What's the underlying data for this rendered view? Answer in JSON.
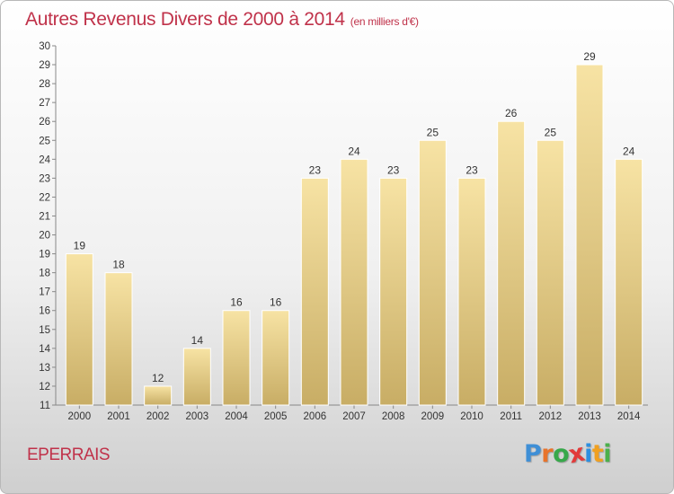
{
  "header": {
    "title": "Autres Revenus Divers de 2000 à 2014",
    "unit": "(en milliers d'€)"
  },
  "footer": {
    "commune": "EPERRAIS",
    "brand_letters": [
      "P",
      "r",
      "o",
      "x",
      "i",
      "t",
      "i"
    ],
    "brand_colors": [
      "#3f8fd6",
      "#e8732a",
      "#37a84a",
      "#e23a3a",
      "#2d8fe0",
      "#f0a020",
      "#4bb04b"
    ]
  },
  "chart_data": {
    "type": "bar",
    "title": "Autres Revenus Divers de 2000 à 2014",
    "xlabel": "",
    "ylabel": "",
    "categories": [
      "2000",
      "2001",
      "2002",
      "2003",
      "2004",
      "2005",
      "2006",
      "2007",
      "2008",
      "2009",
      "2010",
      "2011",
      "2012",
      "2013",
      "2014"
    ],
    "values": [
      19,
      18,
      12,
      14,
      16,
      16,
      23,
      24,
      23,
      25,
      23,
      26,
      25,
      29,
      24
    ],
    "ylim": [
      11,
      30
    ],
    "yticks": [
      11,
      12,
      13,
      14,
      15,
      16,
      17,
      18,
      19,
      20,
      21,
      22,
      23,
      24,
      25,
      26,
      27,
      28,
      29,
      30
    ],
    "grid": false,
    "legend": "none",
    "colors": {
      "bar_light": "#f7e3a4",
      "bar_dark": "#c8ad65"
    }
  }
}
